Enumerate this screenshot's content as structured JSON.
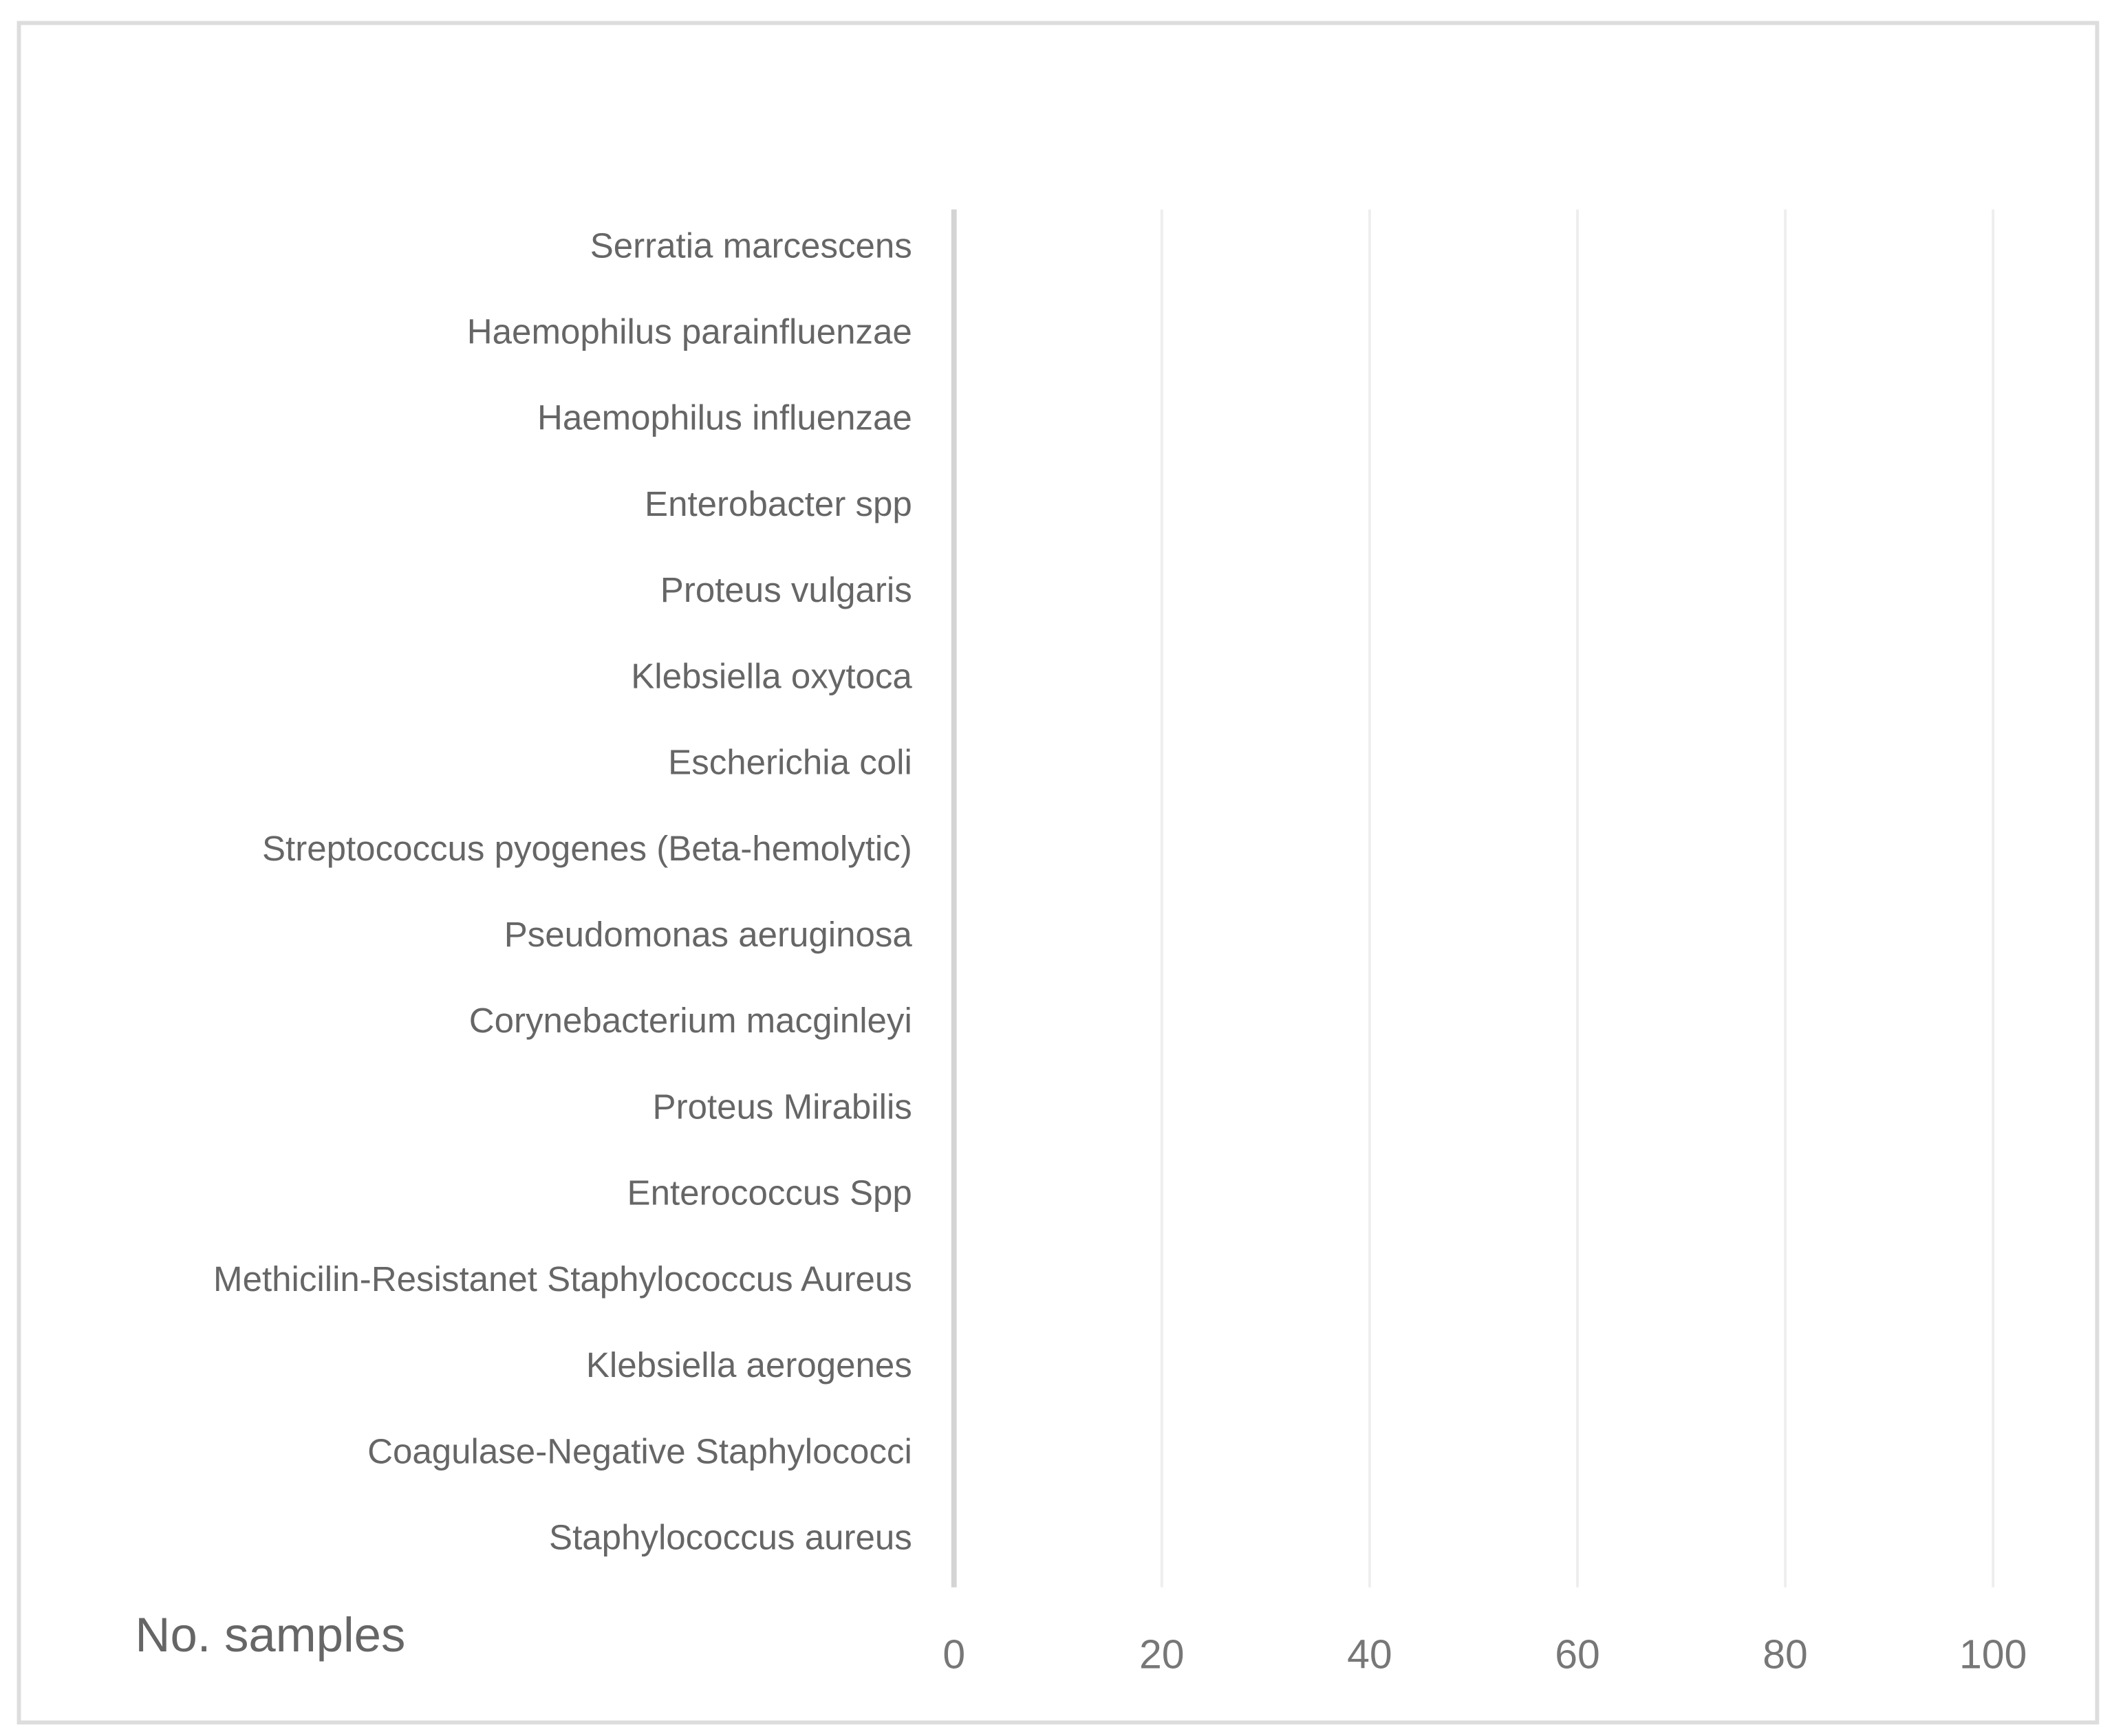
{
  "chart_data": {
    "type": "bar",
    "orientation": "horizontal",
    "x_label": "No. samples",
    "categories": [
      "Serratia marcescens",
      "Haemophilus parainfluenzae",
      "Haemophilus influenzae",
      "Enterobacter spp",
      "Proteus vulgaris",
      "Klebsiella oxytoca",
      "Escherichia coli",
      "Streptococcus pyogenes (Beta-hemolytic)",
      "Pseudomonas aeruginosa",
      "Corynebacterium macginleyi",
      "Proteus Mirabilis",
      "Enterococcus  Spp",
      "Methicilin-Resistanet Staphylococcus Aureus",
      "Klebsiella  aerogenes",
      "Coagulase-Negative Staphylococci",
      "Staphylococcus aureus"
    ],
    "xlim": [
      0,
      100
    ],
    "xticks": [
      0,
      20,
      40,
      60,
      80,
      100
    ],
    "grid": true
  }
}
